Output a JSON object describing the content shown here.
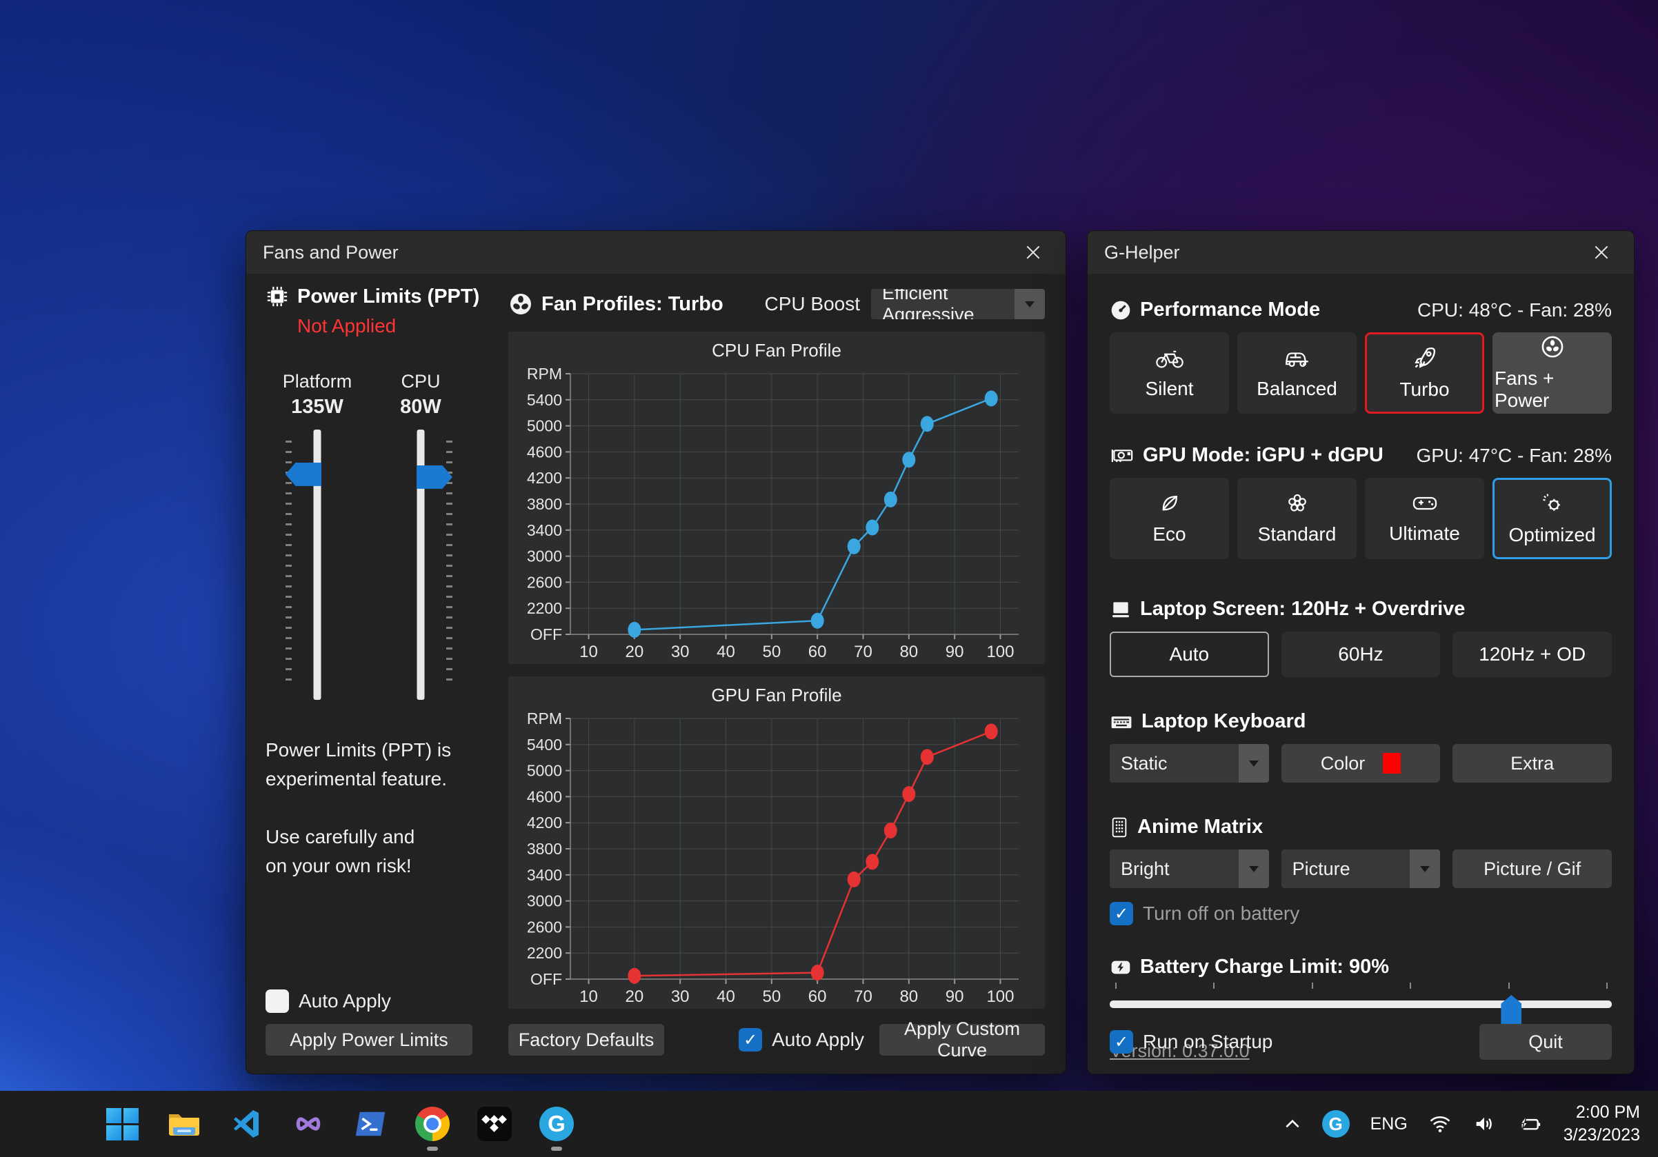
{
  "colors": {
    "accent_blue": "#1a7ad2",
    "chart_blue": "#3aa7e0",
    "chart_red": "#e63232",
    "status_red": "#ff3434",
    "turbo_border": "#e21b23",
    "optimized_border": "#2f9de8",
    "keyboard_swatch": "#ff0000"
  },
  "fans_window": {
    "title": "Fans and Power",
    "close_icon": "close-x",
    "power_limits": {
      "header": "Power Limits (PPT)",
      "status": "Not Applied",
      "sliders": [
        {
          "label": "Platform",
          "value": "135W",
          "percent": 13
        },
        {
          "label": "CPU",
          "value": "80W",
          "percent": 14
        }
      ],
      "note_lines": [
        "Power Limits (PPT) is",
        "experimental feature.",
        "Use carefully and",
        "on your own risk!"
      ],
      "auto_apply_label": "Auto Apply",
      "auto_apply_checked": false,
      "apply_button": "Apply Power Limits"
    },
    "fan_profiles": {
      "header": "Fan Profiles: Turbo",
      "cpu_boost_label": "CPU Boost",
      "cpu_boost_value": "Efficient Aggressive",
      "factory_defaults_button": "Factory Defaults",
      "auto_apply_label": "Auto Apply",
      "auto_apply_checked": true,
      "apply_button": "Apply Custom Curve"
    }
  },
  "chart_data": [
    {
      "type": "line",
      "title": "CPU Fan Profile",
      "grid": true,
      "x_ticks": [
        10,
        20,
        30,
        40,
        50,
        60,
        70,
        80,
        90,
        100
      ],
      "x_range": [
        6,
        104
      ],
      "y_ticks": [
        2200,
        2600,
        3000,
        3400,
        3800,
        4200,
        4600,
        5000,
        5400
      ],
      "y_axis_label_top": "RPM",
      "y_axis_label_bottom": "OFF",
      "y_value_range": [
        1800,
        5800
      ],
      "series": [
        {
          "name": "CPU fan curve",
          "color": "#3aa7e0",
          "points": [
            [
              20,
              1870
            ],
            [
              60,
              2010
            ],
            [
              68,
              3150
            ],
            [
              72,
              3440
            ],
            [
              76,
              3870
            ],
            [
              80,
              4480
            ],
            [
              84,
              5030
            ],
            [
              98,
              5420
            ]
          ]
        }
      ]
    },
    {
      "type": "line",
      "title": "GPU Fan Profile",
      "grid": true,
      "x_ticks": [
        10,
        20,
        30,
        40,
        50,
        60,
        70,
        80,
        90,
        100
      ],
      "x_range": [
        6,
        104
      ],
      "y_ticks": [
        2200,
        2600,
        3000,
        3400,
        3800,
        4200,
        4600,
        5000,
        5400
      ],
      "y_axis_label_top": "RPM",
      "y_axis_label_bottom": "OFF",
      "y_value_range": [
        1800,
        5800
      ],
      "series": [
        {
          "name": "GPU fan curve",
          "color": "#e63232",
          "points": [
            [
              20,
              1850
            ],
            [
              60,
              1900
            ],
            [
              68,
              3330
            ],
            [
              72,
              3600
            ],
            [
              76,
              4080
            ],
            [
              80,
              4640
            ],
            [
              84,
              5210
            ],
            [
              98,
              5600
            ]
          ]
        }
      ]
    }
  ],
  "ghelper_window": {
    "title": "G-Helper",
    "performance": {
      "header": "Performance Mode",
      "status": "CPU: 48°C -  Fan: 28%",
      "selected": "Turbo",
      "buttons": [
        {
          "label": "Silent"
        },
        {
          "label": "Balanced"
        },
        {
          "label": "Turbo"
        },
        {
          "label": "Fans + Power"
        }
      ]
    },
    "gpu": {
      "header": "GPU Mode: iGPU + dGPU",
      "status": "GPU: 47°C -  Fan: 28%",
      "selected": "Optimized",
      "buttons": [
        {
          "label": "Eco"
        },
        {
          "label": "Standard"
        },
        {
          "label": "Ultimate"
        },
        {
          "label": "Optimized"
        }
      ]
    },
    "screen": {
      "header": "Laptop Screen: 120Hz + Overdrive",
      "selected": "Auto",
      "buttons": [
        {
          "label": "Auto"
        },
        {
          "label": "60Hz"
        },
        {
          "label": "120Hz + OD"
        }
      ]
    },
    "keyboard": {
      "header": "Laptop Keyboard",
      "mode_value": "Static",
      "color_button": "Color",
      "extra_button": "Extra"
    },
    "anime": {
      "header": "Anime Matrix",
      "brightness_value": "Bright",
      "mode_value": "Picture",
      "picture_button": "Picture / Gif",
      "battery_checkbox_label": "Turn off on battery",
      "battery_checkbox_checked": true
    },
    "battery": {
      "header": "Battery Charge Limit: 90%",
      "value": 90,
      "min": 50,
      "max": 100,
      "ticks": [
        50,
        60,
        70,
        80,
        90,
        100
      ]
    },
    "version_link": "Version: 0.37.0.0",
    "startup_checkbox_label": "Run on Startup",
    "startup_checked": true,
    "quit_button": "Quit"
  },
  "taskbar": {
    "apps": [
      {
        "name": "start"
      },
      {
        "name": "file-explorer"
      },
      {
        "name": "vscode"
      },
      {
        "name": "visual-studio"
      },
      {
        "name": "terminal"
      },
      {
        "name": "chrome",
        "running": true
      },
      {
        "name": "tidal"
      },
      {
        "name": "ghelper",
        "running": true,
        "letter": "G"
      }
    ],
    "tray": {
      "language": "ENG",
      "time": "2:00 PM",
      "date": "3/23/2023"
    }
  }
}
